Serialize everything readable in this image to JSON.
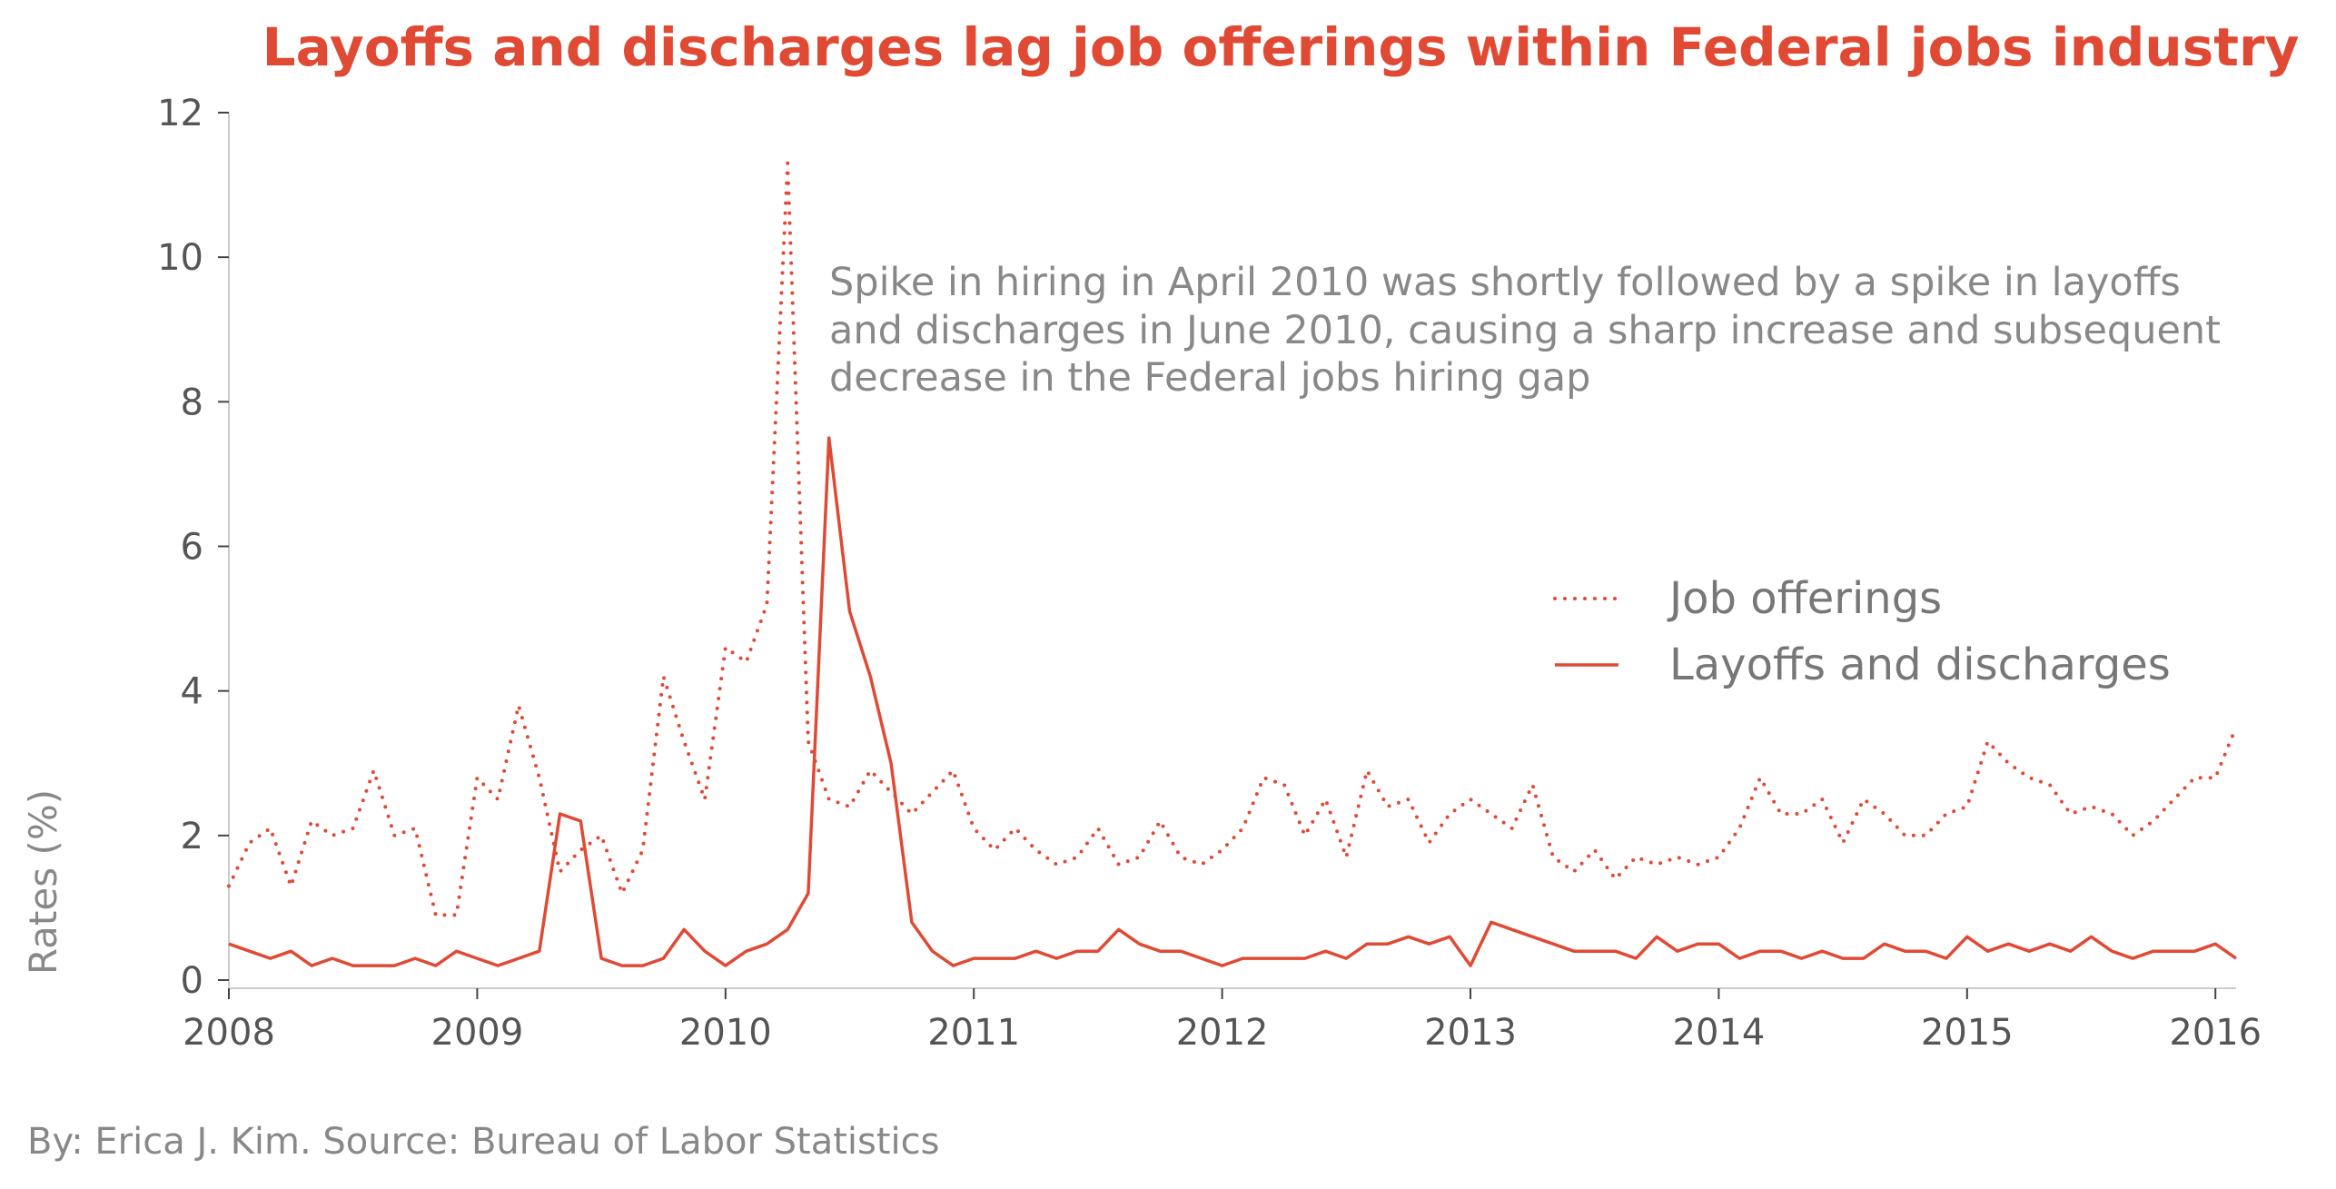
{
  "chart_data": {
    "type": "line",
    "title": "Layoffs and discharges lag job offerings within Federal jobs industry",
    "xlabel": "",
    "ylabel": "Rates (%)",
    "x_start": "2008-01",
    "x_ticks": [
      "2008",
      "2009",
      "2010",
      "2011",
      "2012",
      "2013",
      "2014",
      "2015",
      "2016"
    ],
    "y_ticks": [
      "0",
      "2",
      "4",
      "6",
      "8",
      "10",
      "12"
    ],
    "xlim": [
      "2008-01",
      "2016-02"
    ],
    "ylim": [
      0,
      12
    ],
    "grid": false,
    "legend_position": "right",
    "annotation": [
      "Spike in hiring in April 2010 was shortly followed by a spike in layoffs",
      "and discharges in June 2010, causing a sharp increase and subsequent",
      "decrease in the Federal jobs hiring gap"
    ],
    "credit": "By: Erica J. Kim. Source: Bureau of Labor Statistics",
    "colors": {
      "title": "#e04a34",
      "series": "#e04a34",
      "axis": "#cccccc"
    },
    "series": [
      {
        "name": "Job offerings",
        "style": "dotted",
        "values": [
          1.3,
          1.9,
          2.1,
          1.3,
          2.2,
          2.0,
          2.1,
          2.9,
          2.0,
          2.1,
          0.9,
          0.9,
          2.8,
          2.5,
          3.8,
          2.8,
          1.5,
          1.8,
          2.0,
          1.2,
          1.8,
          4.2,
          3.3,
          2.5,
          4.6,
          4.4,
          5.2,
          11.3,
          3.3,
          2.5,
          2.4,
          2.9,
          2.6,
          2.3,
          2.6,
          2.9,
          2.1,
          1.8,
          2.1,
          1.8,
          1.6,
          1.7,
          2.1,
          1.6,
          1.7,
          2.2,
          1.7,
          1.6,
          1.8,
          2.1,
          2.8,
          2.7,
          2.0,
          2.5,
          1.7,
          2.9,
          2.4,
          2.5,
          1.9,
          2.3,
          2.5,
          2.3,
          2.1,
          2.7,
          1.7,
          1.5,
          1.8,
          1.4,
          1.7,
          1.6,
          1.7,
          1.6,
          1.7,
          2.1,
          2.8,
          2.3,
          2.3,
          2.5,
          1.9,
          2.5,
          2.3,
          2.0,
          2.0,
          2.3,
          2.4,
          3.3,
          3.0,
          2.8,
          2.7,
          2.3,
          2.4,
          2.3,
          2.0,
          2.2,
          2.5,
          2.8,
          2.8,
          3.5
        ]
      },
      {
        "name": "Layoffs and discharges",
        "style": "solid",
        "values": [
          0.5,
          0.4,
          0.3,
          0.4,
          0.2,
          0.3,
          0.2,
          0.2,
          0.2,
          0.3,
          0.2,
          0.4,
          0.3,
          0.2,
          0.3,
          0.4,
          2.3,
          2.2,
          0.3,
          0.2,
          0.2,
          0.3,
          0.7,
          0.4,
          0.2,
          0.4,
          0.5,
          0.7,
          1.2,
          7.5,
          5.1,
          4.2,
          3.0,
          0.8,
          0.4,
          0.2,
          0.3,
          0.3,
          0.3,
          0.4,
          0.3,
          0.4,
          0.4,
          0.7,
          0.5,
          0.4,
          0.4,
          0.3,
          0.2,
          0.3,
          0.3,
          0.3,
          0.3,
          0.4,
          0.3,
          0.5,
          0.5,
          0.6,
          0.5,
          0.6,
          0.2,
          0.8,
          0.7,
          0.6,
          0.5,
          0.4,
          0.4,
          0.4,
          0.3,
          0.6,
          0.4,
          0.5,
          0.5,
          0.3,
          0.4,
          0.4,
          0.3,
          0.4,
          0.3,
          0.3,
          0.5,
          0.4,
          0.4,
          0.3,
          0.6,
          0.4,
          0.5,
          0.4,
          0.5,
          0.4,
          0.6,
          0.4,
          0.3,
          0.4,
          0.4,
          0.4,
          0.5,
          0.3
        ]
      }
    ]
  }
}
